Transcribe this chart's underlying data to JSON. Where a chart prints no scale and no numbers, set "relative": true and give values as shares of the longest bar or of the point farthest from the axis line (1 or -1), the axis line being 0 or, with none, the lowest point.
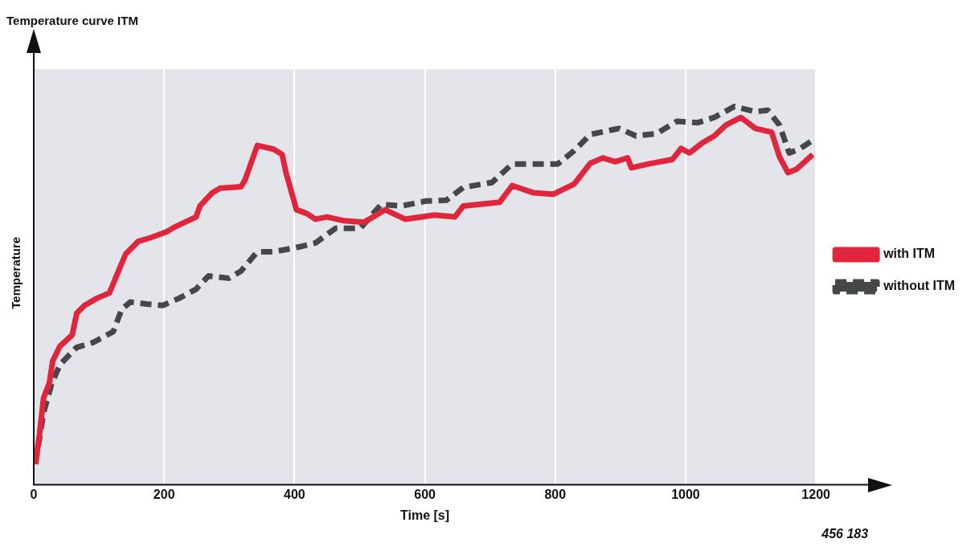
{
  "chart_data": {
    "type": "line",
    "title": "Temperature curve ITM",
    "xlabel": "Time [s]",
    "ylabel": "Temperature",
    "relative": true,
    "xlim": [
      0,
      1200
    ],
    "xticks": [
      0,
      200,
      400,
      600,
      800,
      1000,
      1200
    ],
    "grid": "x",
    "legend": "right",
    "marker": "none",
    "annotations": [
      "456 183"
    ],
    "series": [
      {
        "name": "with ITM",
        "color": "#e0263c",
        "line_style": "solid",
        "x": [
          2.5,
          8.8,
          15.1,
          24,
          29,
          40,
          59,
          66,
          78,
          97,
          116,
          129,
          141,
          160,
          179,
          204,
          217,
          249,
          255,
          274,
          286,
          318,
          324,
          343,
          368,
          381,
          387,
          403,
          419,
          432,
          450,
          476,
          507,
          539,
          570,
          615,
          646,
          659,
          715,
          734,
          766,
          797,
          829,
          854,
          873,
          892,
          911,
          917,
          943,
          980,
          993,
          1006,
          1025,
          1044,
          1062,
          1085,
          1107,
          1132,
          1144,
          1157,
          1170,
          1195
        ],
        "values": [
          0.055,
          0.133,
          0.23,
          0.269,
          0.327,
          0.366,
          0.396,
          0.454,
          0.474,
          0.493,
          0.507,
          0.561,
          0.61,
          0.643,
          0.653,
          0.669,
          0.682,
          0.708,
          0.737,
          0.772,
          0.784,
          0.788,
          0.805,
          0.897,
          0.887,
          0.873,
          0.825,
          0.727,
          0.717,
          0.702,
          0.708,
          0.698,
          0.694,
          0.727,
          0.702,
          0.713,
          0.708,
          0.737,
          0.747,
          0.791,
          0.772,
          0.768,
          0.795,
          0.85,
          0.864,
          0.854,
          0.864,
          0.838,
          0.848,
          0.86,
          0.889,
          0.877,
          0.903,
          0.922,
          0.951,
          0.971,
          0.942,
          0.932,
          0.867,
          0.825,
          0.834,
          0.873
        ]
      },
      {
        "name": "without ITM",
        "color": "#45484a",
        "line_style": "dashed",
        "x": [
          2.5,
          15.1,
          27.8,
          40.4,
          65.6,
          90.9,
          122,
          135,
          148,
          173,
          198,
          223,
          249,
          268,
          299,
          318,
          343,
          368,
          400,
          432,
          463,
          501,
          533,
          564,
          602,
          633,
          659,
          703,
          734,
          804,
          829,
          854,
          898,
          924,
          955,
          987,
          1018,
          1044,
          1075,
          1107,
          1126,
          1144,
          1159,
          1176,
          1200
        ],
        "values": [
          0.055,
          0.191,
          0.269,
          0.318,
          0.363,
          0.376,
          0.405,
          0.464,
          0.483,
          0.478,
          0.474,
          0.493,
          0.517,
          0.552,
          0.546,
          0.565,
          0.616,
          0.616,
          0.626,
          0.639,
          0.678,
          0.678,
          0.741,
          0.737,
          0.75,
          0.752,
          0.786,
          0.799,
          0.848,
          0.848,
          0.883,
          0.926,
          0.942,
          0.922,
          0.928,
          0.961,
          0.957,
          0.971,
          1,
          0.986,
          0.99,
          0.951,
          0.877,
          0.889,
          0.916
        ]
      }
    ]
  }
}
